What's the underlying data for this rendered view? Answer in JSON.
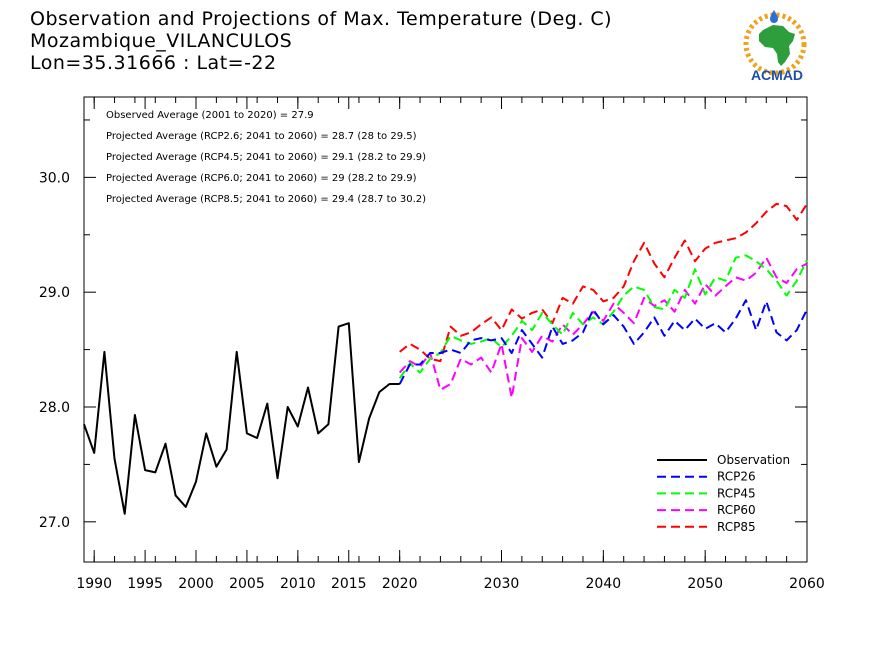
{
  "header": {
    "line1": "Observation and Projections of Max. Temperature (Deg. C)",
    "line2": "Mozambique_VILANCULOS",
    "line3": "Lon=35.31666 : Lat=-22"
  },
  "logo": {
    "text": "ACMAD"
  },
  "colors": {
    "observation": "#000000",
    "rcp26": "#0000ff",
    "rcp45": "#00ff00",
    "rcp60": "#ff00ff",
    "rcp85": "#ff0000"
  },
  "chart_data": {
    "type": "line",
    "xlim": [
      1989,
      2060
    ],
    "ylim": [
      26.65,
      30.7
    ],
    "xticks": [
      1990,
      1995,
      2000,
      2005,
      2010,
      2015,
      2020,
      2030,
      2040,
      2050,
      2060
    ],
    "xtick_labels": [
      "1990",
      "1995",
      "2000",
      "2005",
      "2010",
      "2015",
      "2020",
      "2030",
      "2040",
      "2050",
      "2060"
    ],
    "yticks": [
      27.0,
      28.0,
      29.0,
      30.0
    ],
    "ytick_labels": [
      "27.0",
      "28.0",
      "29.0",
      "30.0"
    ],
    "annotations": [
      "Observed Average (2001 to 2020) = 27.9",
      "Projected Average (RCP2.6; 2041 to 2060) = 28.7 (28 to 29.5)",
      "Projected Average (RCP4.5; 2041 to 2060) = 29.1 (28.2 to 29.9)",
      "Projected Average (RCP6.0; 2041 to 2060) = 29 (28.2 to 29.9)",
      "Projected Average (RCP8.5; 2041 to 2060) = 29.4 (28.7 to 30.2)"
    ],
    "legend_position": "bottom-right",
    "series": [
      {
        "name": "Observation",
        "style": "solid",
        "x": [
          1989,
          1990,
          1991,
          1992,
          1993,
          1994,
          1995,
          1996,
          1997,
          1998,
          1999,
          2000,
          2001,
          2002,
          2003,
          2004,
          2005,
          2006,
          2007,
          2008,
          2009,
          2010,
          2011,
          2012,
          2013,
          2014,
          2015,
          2016,
          2017,
          2018,
          2019,
          2020
        ],
        "values": [
          27.85,
          27.6,
          28.48,
          27.55,
          27.07,
          27.93,
          27.45,
          27.43,
          27.68,
          27.23,
          27.13,
          27.35,
          27.77,
          27.48,
          27.63,
          28.48,
          27.77,
          27.73,
          28.03,
          27.38,
          28.0,
          27.83,
          28.17,
          27.77,
          27.85,
          28.7,
          28.73,
          27.52,
          27.9,
          28.13,
          28.2,
          28.2
        ]
      },
      {
        "name": "RCP26",
        "style": "dashed",
        "x": [
          2020,
          2021,
          2022,
          2023,
          2024,
          2025,
          2026,
          2027,
          2028,
          2029,
          2030,
          2031,
          2032,
          2033,
          2034,
          2035,
          2036,
          2037,
          2038,
          2039,
          2040,
          2041,
          2042,
          2043,
          2044,
          2045,
          2046,
          2047,
          2048,
          2049,
          2050,
          2051,
          2052,
          2053,
          2054,
          2055,
          2056,
          2057,
          2058,
          2059,
          2060
        ],
        "values": [
          28.2,
          28.37,
          28.37,
          28.47,
          28.47,
          28.5,
          28.47,
          28.58,
          28.6,
          28.58,
          28.6,
          28.47,
          28.67,
          28.55,
          28.43,
          28.7,
          28.55,
          28.58,
          28.65,
          28.85,
          28.72,
          28.8,
          28.7,
          28.55,
          28.65,
          28.78,
          28.62,
          28.75,
          28.67,
          28.77,
          28.68,
          28.73,
          28.65,
          28.77,
          28.93,
          28.67,
          28.92,
          28.65,
          28.58,
          28.67,
          28.85
        ]
      },
      {
        "name": "RCP45",
        "style": "dashed",
        "x": [
          2020,
          2021,
          2022,
          2023,
          2024,
          2025,
          2026,
          2027,
          2028,
          2029,
          2030,
          2031,
          2032,
          2033,
          2034,
          2035,
          2036,
          2037,
          2038,
          2039,
          2040,
          2041,
          2042,
          2043,
          2044,
          2045,
          2046,
          2047,
          2048,
          2049,
          2050,
          2051,
          2052,
          2053,
          2054,
          2055,
          2056,
          2057,
          2058,
          2059,
          2060
        ],
        "values": [
          28.25,
          28.38,
          28.3,
          28.42,
          28.47,
          28.62,
          28.58,
          28.55,
          28.57,
          28.6,
          28.52,
          28.62,
          28.75,
          28.67,
          28.82,
          28.72,
          28.63,
          28.82,
          28.72,
          28.78,
          28.72,
          28.83,
          28.97,
          29.05,
          29.02,
          28.87,
          28.85,
          29.02,
          28.95,
          29.2,
          28.98,
          29.13,
          29.1,
          29.3,
          29.32,
          29.27,
          29.2,
          29.1,
          28.97,
          29.1,
          29.28
        ]
      },
      {
        "name": "RCP60",
        "style": "dashed",
        "x": [
          2020,
          2021,
          2022,
          2023,
          2024,
          2025,
          2026,
          2027,
          2028,
          2029,
          2030,
          2031,
          2032,
          2033,
          2034,
          2035,
          2036,
          2037,
          2038,
          2039,
          2040,
          2041,
          2042,
          2043,
          2044,
          2045,
          2046,
          2047,
          2048,
          2049,
          2050,
          2051,
          2052,
          2053,
          2054,
          2055,
          2056,
          2057,
          2058,
          2059,
          2060
        ],
        "values": [
          28.3,
          28.4,
          28.35,
          28.47,
          28.15,
          28.2,
          28.42,
          28.37,
          28.43,
          28.3,
          28.55,
          28.08,
          28.6,
          28.48,
          28.62,
          28.57,
          28.72,
          28.63,
          28.72,
          28.83,
          28.75,
          28.9,
          28.82,
          28.73,
          28.95,
          28.88,
          28.93,
          28.83,
          29.02,
          28.9,
          29.07,
          28.97,
          29.05,
          29.13,
          29.1,
          29.17,
          29.3,
          29.13,
          29.08,
          29.2,
          29.25
        ]
      },
      {
        "name": "RCP85",
        "style": "dashed",
        "x": [
          2020,
          2021,
          2022,
          2023,
          2024,
          2025,
          2026,
          2027,
          2028,
          2029,
          2030,
          2031,
          2032,
          2033,
          2034,
          2035,
          2036,
          2037,
          2038,
          2039,
          2040,
          2041,
          2042,
          2043,
          2044,
          2045,
          2046,
          2047,
          2048,
          2049,
          2050,
          2051,
          2052,
          2053,
          2054,
          2055,
          2056,
          2057,
          2058,
          2059,
          2060
        ],
        "values": [
          28.48,
          28.55,
          28.5,
          28.42,
          28.4,
          28.7,
          28.62,
          28.65,
          28.72,
          28.78,
          28.67,
          28.85,
          28.77,
          28.82,
          28.85,
          28.73,
          28.95,
          28.9,
          29.05,
          29.02,
          28.92,
          28.95,
          29.05,
          29.27,
          29.43,
          29.25,
          29.13,
          29.3,
          29.45,
          29.27,
          29.38,
          29.43,
          29.45,
          29.47,
          29.52,
          29.6,
          29.7,
          29.77,
          29.75,
          29.63,
          29.77
        ]
      }
    ]
  }
}
